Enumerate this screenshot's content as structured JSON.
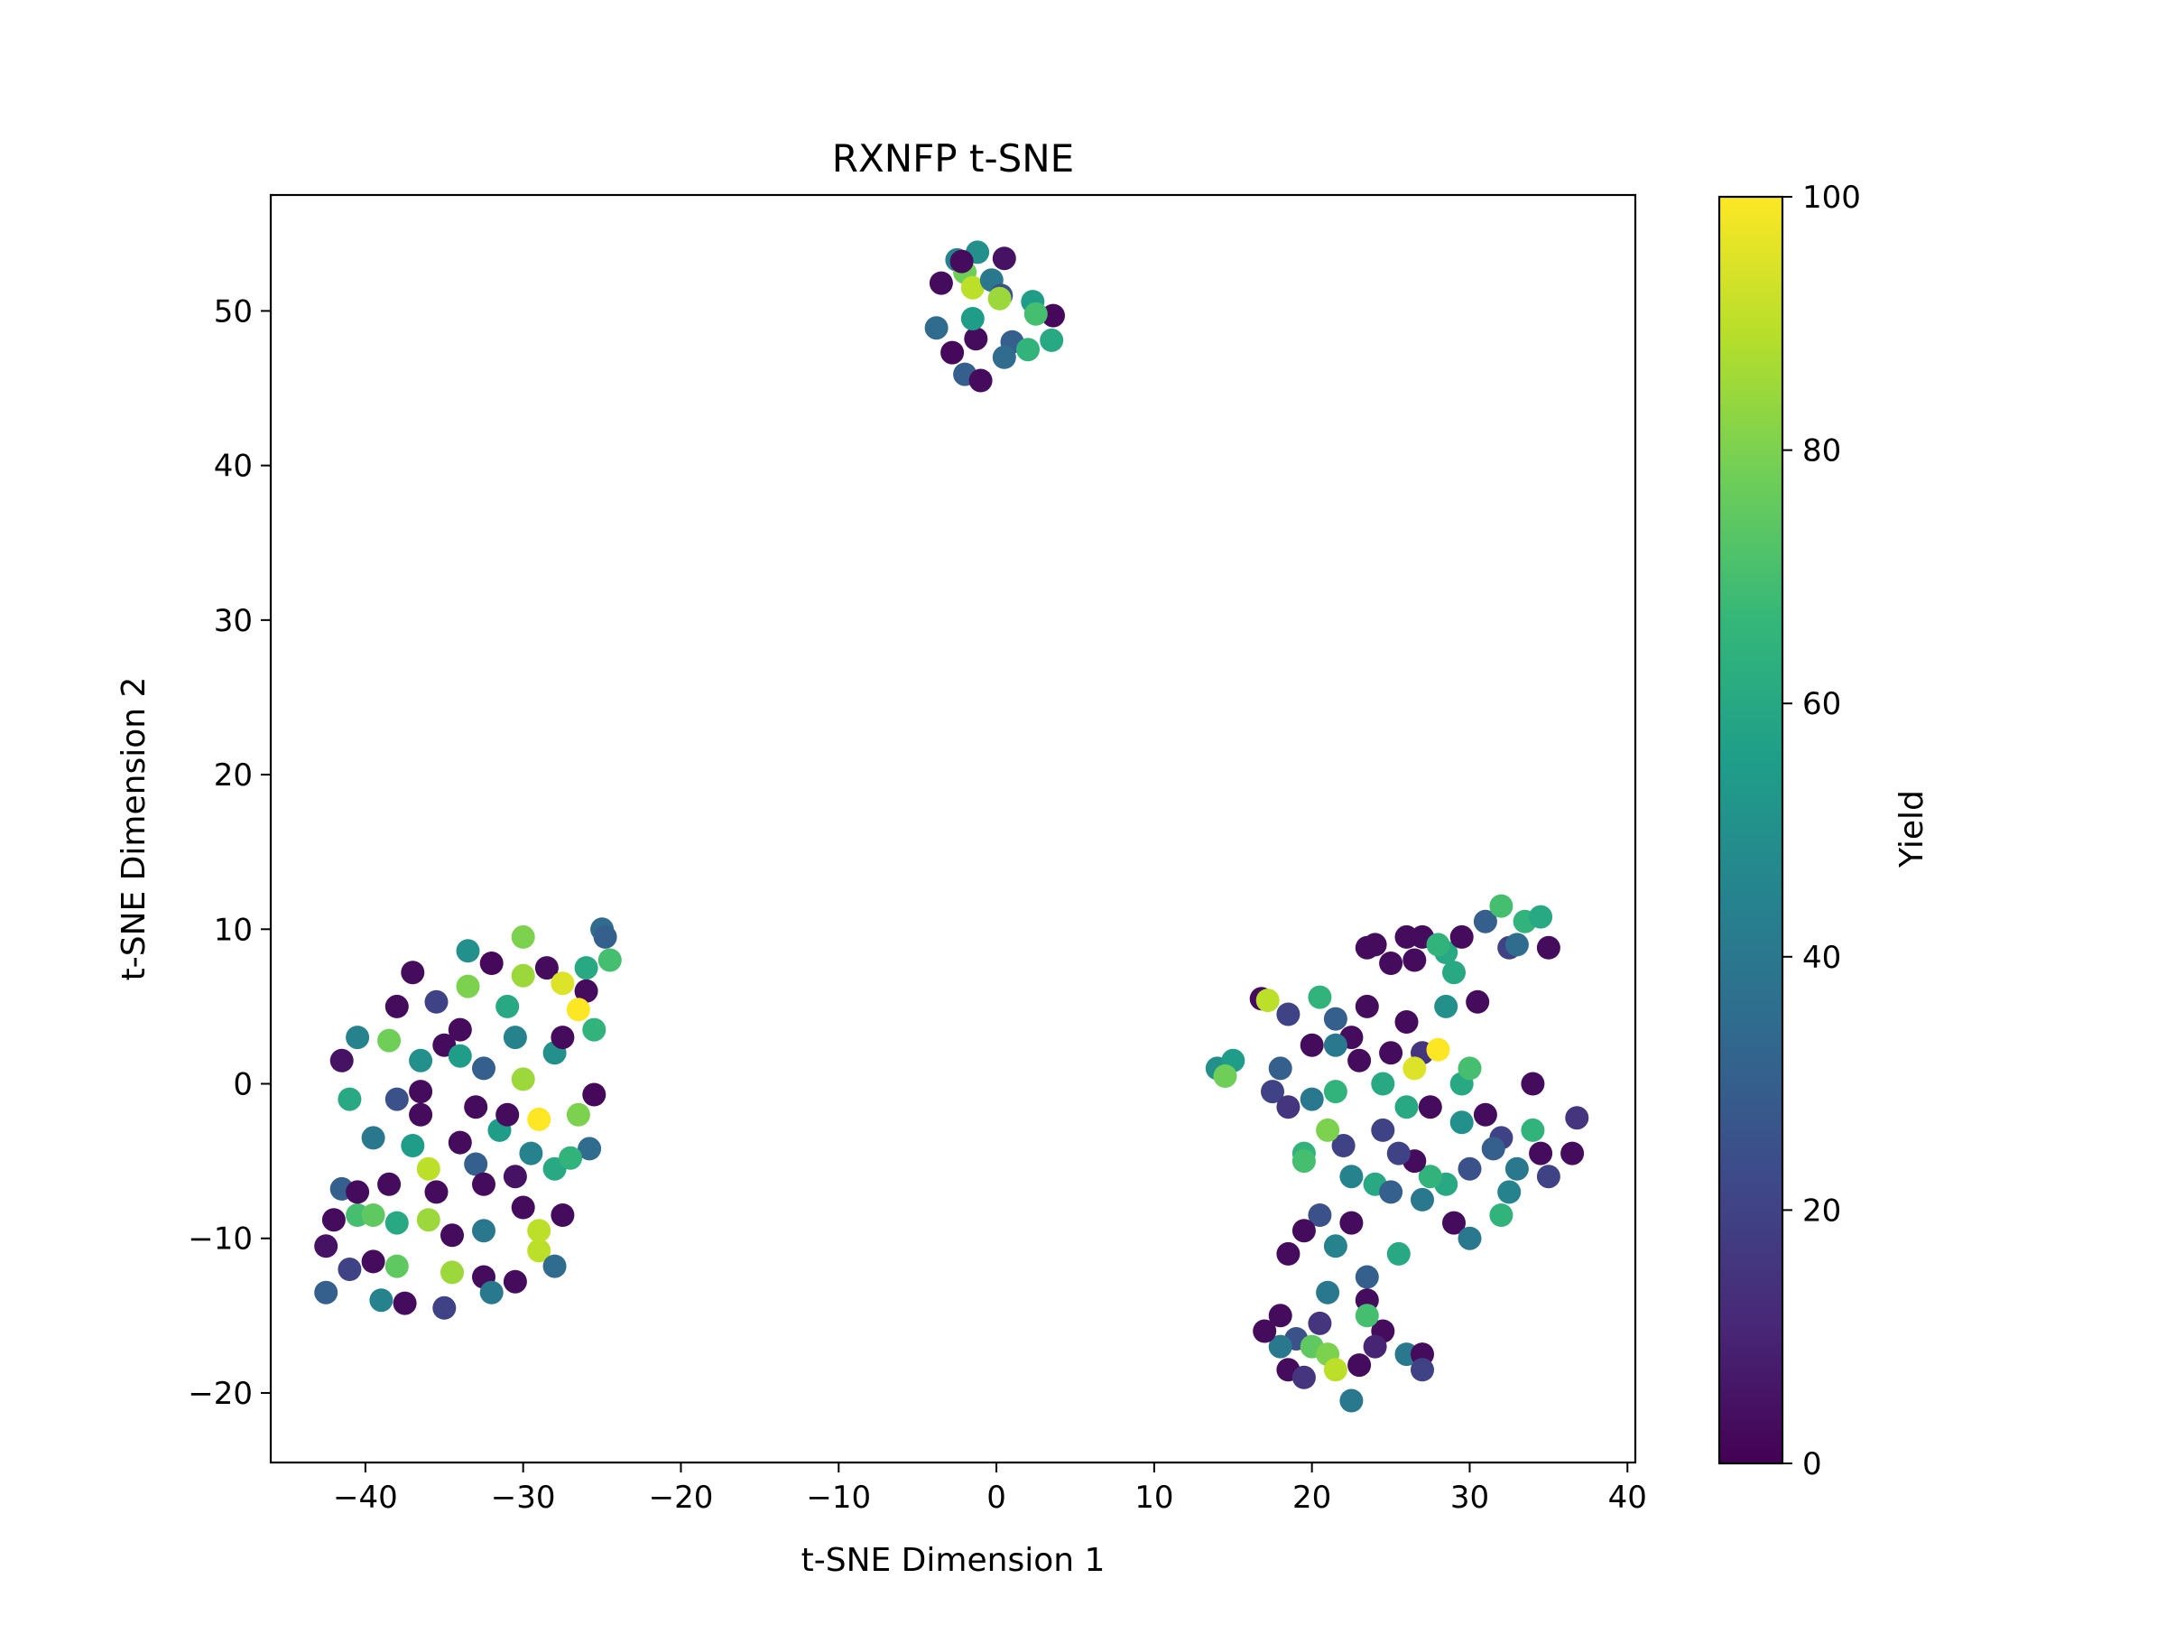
{
  "chart_data": {
    "type": "scatter",
    "title": "RXNFP t-SNE",
    "xlabel": "t-SNE Dimension 1",
    "ylabel": "t-SNE Dimension 2",
    "xlim": [
      -46,
      40.5
    ],
    "ylim": [
      -24.5,
      57.5
    ],
    "xticks": [
      -40,
      -30,
      -20,
      -10,
      0,
      10,
      20,
      30,
      40
    ],
    "yticks": [
      -20,
      -10,
      0,
      10,
      20,
      30,
      40,
      50
    ],
    "xtick_labels": [
      "−40",
      "−30",
      "−20",
      "−10",
      "0",
      "10",
      "20",
      "30",
      "40"
    ],
    "ytick_labels": [
      "−20",
      "−10",
      "0",
      "10",
      "20",
      "30",
      "40",
      "50"
    ],
    "grid": false,
    "colormap": "viridis",
    "colorbar": {
      "label": "Yield",
      "range": [
        0,
        100
      ],
      "ticks": [
        0,
        20,
        40,
        60,
        80,
        100
      ],
      "tick_labels": [
        "0",
        "20",
        "40",
        "60",
        "80",
        "100"
      ]
    },
    "colors": {
      "viridis_stops": [
        "#440154",
        "#482878",
        "#3e4989",
        "#31688e",
        "#26828e",
        "#1f9e89",
        "#35b779",
        "#6ece58",
        "#b5de2b",
        "#fde725"
      ]
    },
    "points": [
      {
        "x": -2.5,
        "y": 53.3,
        "yield": 45
      },
      {
        "x": -1.2,
        "y": 53.8,
        "yield": 50
      },
      {
        "x": 0.5,
        "y": 53.4,
        "yield": 5
      },
      {
        "x": -3.5,
        "y": 51.8,
        "yield": 3
      },
      {
        "x": -2.0,
        "y": 52.5,
        "yield": 78
      },
      {
        "x": -1.5,
        "y": 51.5,
        "yield": 90
      },
      {
        "x": -0.3,
        "y": 52.0,
        "yield": 40
      },
      {
        "x": 0.3,
        "y": 51.0,
        "yield": 25
      },
      {
        "x": 0.2,
        "y": 50.8,
        "yield": 85
      },
      {
        "x": 2.3,
        "y": 50.6,
        "yield": 55
      },
      {
        "x": 3.6,
        "y": 49.7,
        "yield": 2
      },
      {
        "x": -3.8,
        "y": 48.9,
        "yield": 35
      },
      {
        "x": -1.3,
        "y": 48.2,
        "yield": 3
      },
      {
        "x": 1.0,
        "y": 48.0,
        "yield": 30
      },
      {
        "x": 2.0,
        "y": 47.5,
        "yield": 65
      },
      {
        "x": 3.5,
        "y": 48.1,
        "yield": 60
      },
      {
        "x": -2.8,
        "y": 47.3,
        "yield": 2
      },
      {
        "x": -2.0,
        "y": 45.9,
        "yield": 30
      },
      {
        "x": -1.0,
        "y": 45.5,
        "yield": 3
      },
      {
        "x": 0.5,
        "y": 47.0,
        "yield": 35
      },
      {
        "x": -2.2,
        "y": 53.2,
        "yield": 3
      },
      {
        "x": -1.5,
        "y": 49.5,
        "yield": 55
      },
      {
        "x": 2.5,
        "y": 49.8,
        "yield": 70
      },
      {
        "x": -40.5,
        "y": 3.0,
        "yield": 45
      },
      {
        "x": -41.5,
        "y": 1.5,
        "yield": 5
      },
      {
        "x": -38.5,
        "y": 2.8,
        "yield": 78
      },
      {
        "x": -37.0,
        "y": 7.2,
        "yield": 3
      },
      {
        "x": -38.0,
        "y": 5.0,
        "yield": 3
      },
      {
        "x": -33.5,
        "y": 8.6,
        "yield": 50
      },
      {
        "x": -32.0,
        "y": 7.8,
        "yield": 2
      },
      {
        "x": -30.0,
        "y": 9.5,
        "yield": 80
      },
      {
        "x": -28.5,
        "y": 7.5,
        "yield": 3
      },
      {
        "x": -26.0,
        "y": 6.0,
        "yield": 3
      },
      {
        "x": -24.5,
        "y": 8.0,
        "yield": 70
      },
      {
        "x": -25.0,
        "y": 10.0,
        "yield": 35
      },
      {
        "x": -26.5,
        "y": 4.8,
        "yield": 100
      },
      {
        "x": -27.5,
        "y": 6.5,
        "yield": 95
      },
      {
        "x": -35.0,
        "y": 2.5,
        "yield": 3
      },
      {
        "x": -32.5,
        "y": 1.0,
        "yield": 30
      },
      {
        "x": -30.0,
        "y": 0.3,
        "yield": 85
      },
      {
        "x": -28.0,
        "y": 2.0,
        "yield": 50
      },
      {
        "x": -25.5,
        "y": -0.7,
        "yield": 2
      },
      {
        "x": -26.5,
        "y": -2.0,
        "yield": 80
      },
      {
        "x": -29.0,
        "y": -2.3,
        "yield": 100
      },
      {
        "x": -31.5,
        "y": -3.0,
        "yield": 55
      },
      {
        "x": -33.0,
        "y": -1.5,
        "yield": 3
      },
      {
        "x": -36.5,
        "y": -2.0,
        "yield": 3
      },
      {
        "x": -38.0,
        "y": -1.0,
        "yield": 25
      },
      {
        "x": -39.5,
        "y": -3.5,
        "yield": 40
      },
      {
        "x": -41.0,
        "y": -1.0,
        "yield": 60
      },
      {
        "x": -36.0,
        "y": -5.5,
        "yield": 90
      },
      {
        "x": -33.0,
        "y": -5.2,
        "yield": 30
      },
      {
        "x": -30.5,
        "y": -6.0,
        "yield": 5
      },
      {
        "x": -28.0,
        "y": -5.5,
        "yield": 60
      },
      {
        "x": -25.8,
        "y": -4.2,
        "yield": 35
      },
      {
        "x": -38.5,
        "y": -6.5,
        "yield": 3
      },
      {
        "x": -41.5,
        "y": -6.8,
        "yield": 30
      },
      {
        "x": -40.5,
        "y": -8.5,
        "yield": 70
      },
      {
        "x": -42.0,
        "y": -8.8,
        "yield": 3
      },
      {
        "x": -36.0,
        "y": -8.8,
        "yield": 85
      },
      {
        "x": -34.5,
        "y": -9.8,
        "yield": 3
      },
      {
        "x": -32.5,
        "y": -9.5,
        "yield": 40
      },
      {
        "x": -30.0,
        "y": -8.0,
        "yield": 3
      },
      {
        "x": -29.0,
        "y": -9.5,
        "yield": 90
      },
      {
        "x": -27.5,
        "y": -8.5,
        "yield": 3
      },
      {
        "x": -42.5,
        "y": -10.5,
        "yield": 5
      },
      {
        "x": -41.0,
        "y": -12.0,
        "yield": 20
      },
      {
        "x": -39.5,
        "y": -11.5,
        "yield": 3
      },
      {
        "x": -38.0,
        "y": -11.8,
        "yield": 75
      },
      {
        "x": -34.5,
        "y": -12.2,
        "yield": 85
      },
      {
        "x": -32.5,
        "y": -12.5,
        "yield": 3
      },
      {
        "x": -30.5,
        "y": -12.8,
        "yield": 3
      },
      {
        "x": -29.0,
        "y": -10.8,
        "yield": 90
      },
      {
        "x": -28.0,
        "y": -11.8,
        "yield": 35
      },
      {
        "x": -42.5,
        "y": -13.5,
        "yield": 30
      },
      {
        "x": -39.0,
        "y": -14.0,
        "yield": 45
      },
      {
        "x": -37.5,
        "y": -14.2,
        "yield": 3
      },
      {
        "x": -35.0,
        "y": -14.5,
        "yield": 20
      },
      {
        "x": -32.0,
        "y": -13.5,
        "yield": 40
      },
      {
        "x": -40.5,
        "y": -7.0,
        "yield": 3
      },
      {
        "x": -37.0,
        "y": -4.0,
        "yield": 55
      },
      {
        "x": -34.0,
        "y": -3.8,
        "yield": 3
      },
      {
        "x": -29.5,
        "y": -4.5,
        "yield": 45
      },
      {
        "x": -27.0,
        "y": -4.8,
        "yield": 65
      },
      {
        "x": -31.0,
        "y": 5.0,
        "yield": 60
      },
      {
        "x": -34.0,
        "y": 3.5,
        "yield": 3
      },
      {
        "x": -36.5,
        "y": 1.5,
        "yield": 50
      },
      {
        "x": -30.0,
        "y": 7.0,
        "yield": 85
      },
      {
        "x": -33.5,
        "y": 6.3,
        "yield": 80
      },
      {
        "x": -35.5,
        "y": 5.3,
        "yield": 20
      },
      {
        "x": -27.5,
        "y": 3.0,
        "yield": 3
      },
      {
        "x": -25.5,
        "y": 3.5,
        "yield": 65
      },
      {
        "x": -30.5,
        "y": 3.0,
        "yield": 45
      },
      {
        "x": -32.5,
        "y": -6.5,
        "yield": 3
      },
      {
        "x": -35.5,
        "y": -7.0,
        "yield": 3
      },
      {
        "x": -36.5,
        "y": -0.5,
        "yield": 3
      },
      {
        "x": -34.0,
        "y": 1.8,
        "yield": 55
      },
      {
        "x": -26.0,
        "y": 7.5,
        "yield": 60
      },
      {
        "x": -24.8,
        "y": 9.5,
        "yield": 30
      },
      {
        "x": -31.0,
        "y": -2.0,
        "yield": 3
      },
      {
        "x": -38.0,
        "y": -9.0,
        "yield": 60
      },
      {
        "x": -39.5,
        "y": -8.5,
        "yield": 75
      },
      {
        "x": 14.0,
        "y": 1.0,
        "yield": 50
      },
      {
        "x": 15.0,
        "y": 1.5,
        "yield": 55
      },
      {
        "x": 14.5,
        "y": 0.5,
        "yield": 78
      },
      {
        "x": 16.8,
        "y": 5.5,
        "yield": 3
      },
      {
        "x": 17.2,
        "y": 5.4,
        "yield": 90
      },
      {
        "x": 20.5,
        "y": 5.6,
        "yield": 65
      },
      {
        "x": 21.5,
        "y": 4.2,
        "yield": 30
      },
      {
        "x": 22.5,
        "y": 3.0,
        "yield": 3
      },
      {
        "x": 23.5,
        "y": 5.0,
        "yield": 3
      },
      {
        "x": 23.5,
        "y": 8.8,
        "yield": 3
      },
      {
        "x": 25.0,
        "y": 7.8,
        "yield": 3
      },
      {
        "x": 26.0,
        "y": 9.5,
        "yield": 3
      },
      {
        "x": 27.0,
        "y": 9.5,
        "yield": 3
      },
      {
        "x": 28.5,
        "y": 8.5,
        "yield": 60
      },
      {
        "x": 29.5,
        "y": 9.5,
        "yield": 3
      },
      {
        "x": 31.0,
        "y": 10.5,
        "yield": 30
      },
      {
        "x": 32.0,
        "y": 11.5,
        "yield": 70
      },
      {
        "x": 33.5,
        "y": 10.5,
        "yield": 65
      },
      {
        "x": 34.5,
        "y": 10.8,
        "yield": 60
      },
      {
        "x": 35.0,
        "y": 8.8,
        "yield": 3
      },
      {
        "x": 32.5,
        "y": 8.8,
        "yield": 20
      },
      {
        "x": 29.0,
        "y": 7.2,
        "yield": 60
      },
      {
        "x": 30.5,
        "y": 5.3,
        "yield": 3
      },
      {
        "x": 28.5,
        "y": 5.0,
        "yield": 50
      },
      {
        "x": 26.0,
        "y": 4.0,
        "yield": 3
      },
      {
        "x": 27.0,
        "y": 2.0,
        "yield": 15
      },
      {
        "x": 28.0,
        "y": 2.2,
        "yield": 100
      },
      {
        "x": 26.5,
        "y": 1.0,
        "yield": 95
      },
      {
        "x": 25.0,
        "y": 2.0,
        "yield": 3
      },
      {
        "x": 23.0,
        "y": 1.5,
        "yield": 3
      },
      {
        "x": 21.5,
        "y": 2.5,
        "yield": 40
      },
      {
        "x": 20.0,
        "y": 2.5,
        "yield": 3
      },
      {
        "x": 18.5,
        "y": 4.5,
        "yield": 20
      },
      {
        "x": 18.0,
        "y": 1.0,
        "yield": 30
      },
      {
        "x": 17.5,
        "y": -0.5,
        "yield": 20
      },
      {
        "x": 18.5,
        "y": -1.5,
        "yield": 15
      },
      {
        "x": 20.0,
        "y": -1.0,
        "yield": 40
      },
      {
        "x": 21.5,
        "y": -0.5,
        "yield": 65
      },
      {
        "x": 24.5,
        "y": 0.0,
        "yield": 60
      },
      {
        "x": 26.0,
        "y": -1.5,
        "yield": 60
      },
      {
        "x": 27.5,
        "y": -1.5,
        "yield": 3
      },
      {
        "x": 29.5,
        "y": 0.0,
        "yield": 60
      },
      {
        "x": 30.0,
        "y": 1.0,
        "yield": 70
      },
      {
        "x": 31.0,
        "y": -2.0,
        "yield": 3
      },
      {
        "x": 29.5,
        "y": -2.5,
        "yield": 50
      },
      {
        "x": 32.0,
        "y": -3.5,
        "yield": 20
      },
      {
        "x": 34.0,
        "y": -3.0,
        "yield": 65
      },
      {
        "x": 34.5,
        "y": -4.5,
        "yield": 3
      },
      {
        "x": 35.0,
        "y": -6.0,
        "yield": 20
      },
      {
        "x": 36.5,
        "y": -4.5,
        "yield": 3
      },
      {
        "x": 36.8,
        "y": -2.2,
        "yield": 15
      },
      {
        "x": 34.0,
        "y": 0.0,
        "yield": 3
      },
      {
        "x": 33.0,
        "y": -5.5,
        "yield": 40
      },
      {
        "x": 31.5,
        "y": -4.2,
        "yield": 30
      },
      {
        "x": 30.0,
        "y": -5.5,
        "yield": 25
      },
      {
        "x": 28.5,
        "y": -6.5,
        "yield": 60
      },
      {
        "x": 27.5,
        "y": -6.0,
        "yield": 65
      },
      {
        "x": 26.5,
        "y": -5.0,
        "yield": 3
      },
      {
        "x": 25.5,
        "y": -4.5,
        "yield": 20
      },
      {
        "x": 24.5,
        "y": -3.0,
        "yield": 20
      },
      {
        "x": 22.0,
        "y": -4.0,
        "yield": 20
      },
      {
        "x": 21.0,
        "y": -3.0,
        "yield": 80
      },
      {
        "x": 19.5,
        "y": -4.5,
        "yield": 65
      },
      {
        "x": 19.5,
        "y": -5.0,
        "yield": 70
      },
      {
        "x": 22.5,
        "y": -6.0,
        "yield": 45
      },
      {
        "x": 24.0,
        "y": -6.5,
        "yield": 60
      },
      {
        "x": 25.0,
        "y": -7.0,
        "yield": 30
      },
      {
        "x": 27.0,
        "y": -7.5,
        "yield": 40
      },
      {
        "x": 29.0,
        "y": -9.0,
        "yield": 3
      },
      {
        "x": 30.0,
        "y": -10.0,
        "yield": 40
      },
      {
        "x": 32.0,
        "y": -8.5,
        "yield": 65
      },
      {
        "x": 32.5,
        "y": -7.0,
        "yield": 45
      },
      {
        "x": 20.5,
        "y": -8.5,
        "yield": 25
      },
      {
        "x": 19.5,
        "y": -9.5,
        "yield": 3
      },
      {
        "x": 21.5,
        "y": -10.5,
        "yield": 45
      },
      {
        "x": 22.5,
        "y": -9.0,
        "yield": 3
      },
      {
        "x": 25.5,
        "y": -11.0,
        "yield": 60
      },
      {
        "x": 18.5,
        "y": -11.0,
        "yield": 3
      },
      {
        "x": 23.5,
        "y": -12.5,
        "yield": 30
      },
      {
        "x": 21.0,
        "y": -13.5,
        "yield": 40
      },
      {
        "x": 18.0,
        "y": -15.0,
        "yield": 3
      },
      {
        "x": 19.0,
        "y": -16.5,
        "yield": 25
      },
      {
        "x": 20.5,
        "y": -15.5,
        "yield": 15
      },
      {
        "x": 23.5,
        "y": -14.0,
        "yield": 3
      },
      {
        "x": 24.5,
        "y": -16.0,
        "yield": 3
      },
      {
        "x": 23.5,
        "y": -15.0,
        "yield": 70
      },
      {
        "x": 20.0,
        "y": -17.0,
        "yield": 75
      },
      {
        "x": 21.0,
        "y": -17.5,
        "yield": 80
      },
      {
        "x": 21.5,
        "y": -18.5,
        "yield": 90
      },
      {
        "x": 18.0,
        "y": -17.0,
        "yield": 40
      },
      {
        "x": 18.5,
        "y": -18.5,
        "yield": 3
      },
      {
        "x": 19.5,
        "y": -19.0,
        "yield": 15
      },
      {
        "x": 22.5,
        "y": -20.5,
        "yield": 40
      },
      {
        "x": 23.0,
        "y": -18.2,
        "yield": 3
      },
      {
        "x": 24.0,
        "y": -17.0,
        "yield": 10
      },
      {
        "x": 26.0,
        "y": -17.5,
        "yield": 40
      },
      {
        "x": 27.0,
        "y": -17.5,
        "yield": 3
      },
      {
        "x": 27.0,
        "y": -18.5,
        "yield": 20
      },
      {
        "x": 17.0,
        "y": -16.0,
        "yield": 3
      },
      {
        "x": 26.5,
        "y": 8.0,
        "yield": 3
      },
      {
        "x": 28.0,
        "y": 9.0,
        "yield": 65
      },
      {
        "x": 24.0,
        "y": 9.0,
        "yield": 3
      },
      {
        "x": 33.0,
        "y": 9.0,
        "yield": 35
      }
    ]
  }
}
